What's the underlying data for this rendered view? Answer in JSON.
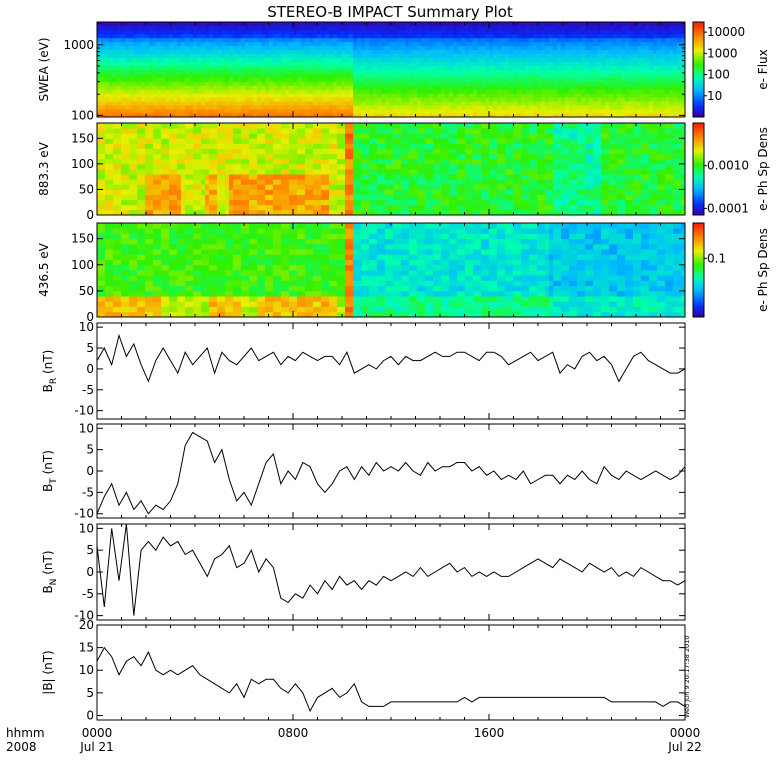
{
  "chart_data": {
    "type": "line",
    "title": "STEREO-B IMPACT Summary Plot",
    "x_axis": {
      "ticks": [
        "0000",
        "0800",
        "1600",
        "0000"
      ],
      "dates": [
        "Jul 21",
        "Jul 22"
      ],
      "corner_label_1": "hhmm",
      "corner_label_2": "2008",
      "range_hours": [
        0,
        24
      ]
    },
    "timestamp": "Wed Jun 9 20:17:38 2010",
    "spectrograms": [
      {
        "id": "swea",
        "ylabel": "SWEA (eV)",
        "yscale": "log",
        "yticks": [
          "1000",
          "100"
        ],
        "ytick_values": [
          1000,
          100
        ],
        "ylim": [
          95,
          2100
        ],
        "colorbar_label": "e- Flux",
        "colorbar_scale": "log",
        "colorbar_ticks": [
          "10000",
          "1000",
          "100",
          "10"
        ],
        "colorbar_tick_values": [
          10000,
          1000,
          100,
          10
        ],
        "colorbar_range": [
          1,
          30000
        ],
        "profile_before_hours": 10.5,
        "low_energy_flux_before": 12000,
        "low_energy_flux_after": 4000
      },
      {
        "id": "pad883",
        "ylabel": "883.3 eV",
        "yticks": [
          "150",
          "100",
          "50",
          "0"
        ],
        "ytick_values": [
          150,
          100,
          50,
          0
        ],
        "ylim": [
          0,
          180
        ],
        "colorbar_label": "e- Ph Sp Dens",
        "colorbar_scale": "log",
        "colorbar_ticks": [
          "0.0010",
          "0.0001"
        ],
        "colorbar_tick_values": [
          0.001,
          0.0001
        ],
        "colorbar_range": [
          7e-05,
          0.01
        ]
      },
      {
        "id": "pad436",
        "ylabel": "436.5 eV",
        "yticks": [
          "150",
          "100",
          "50",
          "0"
        ],
        "ytick_values": [
          150,
          100,
          50,
          0
        ],
        "ylim": [
          0,
          180
        ],
        "colorbar_label": "e- Ph Sp Dens",
        "colorbar_scale": "log",
        "colorbar_ticks": [
          "0.1"
        ],
        "colorbar_tick_values": [
          0.1
        ],
        "colorbar_range": [
          0.01,
          0.4
        ]
      }
    ],
    "line_panels": [
      {
        "id": "br",
        "ylabel_main": "B",
        "ylabel_sub": "R",
        "ylabel_unit": "(nT)",
        "ylim": [
          -12,
          11
        ],
        "yticks": [
          "10",
          "5",
          "0",
          "-5",
          "-10"
        ],
        "ytick_values": [
          10,
          5,
          0,
          -5,
          -10
        ],
        "x_hours": [
          0,
          0.3,
          0.6,
          0.9,
          1.2,
          1.5,
          1.8,
          2.1,
          2.4,
          2.7,
          3.0,
          3.3,
          3.6,
          3.9,
          4.2,
          4.5,
          4.8,
          5.1,
          5.4,
          5.7,
          6.0,
          6.3,
          6.6,
          6.9,
          7.2,
          7.5,
          7.8,
          8.1,
          8.4,
          8.7,
          9.0,
          9.3,
          9.6,
          9.9,
          10.2,
          10.5,
          10.8,
          11.1,
          11.4,
          11.7,
          12.0,
          12.3,
          12.6,
          12.9,
          13.2,
          13.5,
          13.8,
          14.1,
          14.4,
          14.7,
          15.0,
          15.3,
          15.6,
          15.9,
          16.2,
          16.5,
          16.8,
          17.1,
          17.4,
          17.7,
          18.0,
          18.3,
          18.6,
          18.9,
          19.2,
          19.5,
          19.8,
          20.1,
          20.4,
          20.7,
          21.0,
          21.3,
          21.6,
          21.9,
          22.2,
          22.5,
          22.8,
          23.1,
          23.4,
          23.7,
          24.0
        ],
        "values": [
          2,
          5,
          1,
          8,
          3,
          6,
          1,
          -3,
          2,
          5,
          2,
          -1,
          4,
          1,
          3,
          5,
          -1,
          4,
          2,
          1,
          3,
          5,
          2,
          3,
          4,
          1,
          3,
          2,
          4,
          3,
          2,
          3,
          3,
          1,
          4,
          -1,
          0,
          1,
          0,
          2,
          3,
          1,
          3,
          2,
          2,
          3,
          4,
          3,
          3,
          4,
          4,
          3,
          2,
          4,
          4,
          3,
          1,
          2,
          3,
          4,
          2,
          3,
          4,
          -1,
          1,
          0,
          3,
          4,
          2,
          3,
          1,
          -3,
          0,
          3,
          4,
          2,
          1,
          0,
          -1,
          -1,
          0
        ]
      },
      {
        "id": "bt",
        "ylabel_main": "B",
        "ylabel_sub": "T",
        "ylabel_unit": "(nT)",
        "ylim": [
          -11,
          11
        ],
        "yticks": [
          "10",
          "5",
          "0",
          "-5",
          "-10"
        ],
        "ytick_values": [
          10,
          5,
          0,
          -5,
          -10
        ],
        "x_hours": [
          0,
          0.3,
          0.6,
          0.9,
          1.2,
          1.5,
          1.8,
          2.1,
          2.4,
          2.7,
          3.0,
          3.3,
          3.6,
          3.9,
          4.2,
          4.5,
          4.8,
          5.1,
          5.4,
          5.7,
          6.0,
          6.3,
          6.6,
          6.9,
          7.2,
          7.5,
          7.8,
          8.1,
          8.4,
          8.7,
          9.0,
          9.3,
          9.6,
          9.9,
          10.2,
          10.5,
          10.8,
          11.1,
          11.4,
          11.7,
          12.0,
          12.3,
          12.6,
          12.9,
          13.2,
          13.5,
          13.8,
          14.1,
          14.4,
          14.7,
          15.0,
          15.3,
          15.6,
          15.9,
          16.2,
          16.5,
          16.8,
          17.1,
          17.4,
          17.7,
          18.0,
          18.3,
          18.6,
          18.9,
          19.2,
          19.5,
          19.8,
          20.1,
          20.4,
          20.7,
          21.0,
          21.3,
          21.6,
          21.9,
          22.2,
          22.5,
          22.8,
          23.1,
          23.4,
          23.7,
          24.0
        ],
        "values": [
          -10,
          -6,
          -3,
          -8,
          -5,
          -9,
          -7,
          -10,
          -8,
          -9,
          -7,
          -3,
          6,
          9,
          8,
          7,
          2,
          5,
          -2,
          -7,
          -5,
          -8,
          -3,
          2,
          4,
          -3,
          0,
          -2,
          2,
          1,
          -3,
          -5,
          -3,
          0,
          1,
          -2,
          1,
          -1,
          2,
          0,
          1,
          0,
          2,
          0,
          -1,
          2,
          0,
          1,
          1,
          2,
          2,
          0,
          1,
          -1,
          0,
          -2,
          -1,
          -2,
          0,
          -3,
          -2,
          -1,
          -1,
          -3,
          -1,
          -2,
          0,
          -2,
          -3,
          1,
          -1,
          -2,
          0,
          -1,
          -2,
          -1,
          0,
          -1,
          -2,
          -1,
          1
        ]
      },
      {
        "id": "bn",
        "ylabel_main": "B",
        "ylabel_sub": "N",
        "ylabel_unit": "(nT)",
        "ylim": [
          -11,
          11
        ],
        "yticks": [
          "10",
          "5",
          "0",
          "-5",
          "-10"
        ],
        "ytick_values": [
          10,
          5,
          0,
          -5,
          -10
        ],
        "x_hours": [
          0,
          0.3,
          0.6,
          0.9,
          1.2,
          1.5,
          1.8,
          2.1,
          2.4,
          2.7,
          3.0,
          3.3,
          3.6,
          3.9,
          4.2,
          4.5,
          4.8,
          5.1,
          5.4,
          5.7,
          6.0,
          6.3,
          6.6,
          6.9,
          7.2,
          7.5,
          7.8,
          8.1,
          8.4,
          8.7,
          9.0,
          9.3,
          9.6,
          9.9,
          10.2,
          10.5,
          10.8,
          11.1,
          11.4,
          11.7,
          12.0,
          12.3,
          12.6,
          12.9,
          13.2,
          13.5,
          13.8,
          14.1,
          14.4,
          14.7,
          15.0,
          15.3,
          15.6,
          15.9,
          16.2,
          16.5,
          16.8,
          17.1,
          17.4,
          17.7,
          18.0,
          18.3,
          18.6,
          18.9,
          19.2,
          19.5,
          19.8,
          20.1,
          20.4,
          20.7,
          21.0,
          21.3,
          21.6,
          21.9,
          22.2,
          22.5,
          22.8,
          23.1,
          23.4,
          23.7,
          24.0
        ],
        "values": [
          6,
          -8,
          10,
          -2,
          11,
          -10,
          5,
          7,
          5,
          8,
          6,
          7,
          4,
          5,
          2,
          -1,
          3,
          4,
          6,
          1,
          2,
          5,
          0,
          3,
          1,
          -6,
          -7,
          -5,
          -6,
          -3,
          -5,
          -2,
          -4,
          -1,
          -3,
          -2,
          -4,
          -2,
          -3,
          -1,
          -2,
          -1,
          0,
          -1,
          1,
          -1,
          0,
          1,
          2,
          0,
          1,
          -1,
          0,
          -1,
          0,
          -1,
          -1,
          0,
          1,
          2,
          3,
          2,
          1,
          3,
          2,
          1,
          0,
          2,
          1,
          0,
          1,
          -1,
          0,
          -1,
          1,
          0,
          -1,
          -2,
          -2,
          -3,
          -2
        ]
      },
      {
        "id": "bmag",
        "ylabel_main": "|B|",
        "ylabel_sub": "",
        "ylabel_unit": "(nT)",
        "ylim": [
          -1,
          20
        ],
        "yticks": [
          "20",
          "15",
          "10",
          "5",
          "0"
        ],
        "ytick_values": [
          20,
          15,
          10,
          5,
          0
        ],
        "x_hours": [
          0,
          0.3,
          0.6,
          0.9,
          1.2,
          1.5,
          1.8,
          2.1,
          2.4,
          2.7,
          3.0,
          3.3,
          3.6,
          3.9,
          4.2,
          4.5,
          4.8,
          5.1,
          5.4,
          5.7,
          6.0,
          6.3,
          6.6,
          6.9,
          7.2,
          7.5,
          7.8,
          8.1,
          8.4,
          8.7,
          9.0,
          9.3,
          9.6,
          9.9,
          10.2,
          10.5,
          10.8,
          11.1,
          11.4,
          11.7,
          12.0,
          12.3,
          12.6,
          12.9,
          13.2,
          13.5,
          13.8,
          14.1,
          14.4,
          14.7,
          15.0,
          15.3,
          15.6,
          15.9,
          16.2,
          16.5,
          16.8,
          17.1,
          17.4,
          17.7,
          18.0,
          18.3,
          18.6,
          18.9,
          19.2,
          19.5,
          19.8,
          20.1,
          20.4,
          20.7,
          21.0,
          21.3,
          21.6,
          21.9,
          22.2,
          22.5,
          22.8,
          23.1,
          23.4,
          23.7,
          24.0
        ],
        "values": [
          12,
          15,
          13,
          9,
          12,
          13,
          11,
          14,
          10,
          9,
          10,
          9,
          10,
          11,
          9,
          8,
          7,
          6,
          5,
          7,
          4,
          8,
          7,
          8,
          8,
          6,
          5,
          7,
          5,
          1,
          4,
          5,
          6,
          4,
          5,
          7,
          3,
          2,
          2,
          2,
          3,
          3,
          3,
          3,
          3,
          3,
          3,
          3,
          3,
          3,
          4,
          3,
          4,
          4,
          4,
          4,
          4,
          4,
          4,
          4,
          4,
          4,
          4,
          4,
          4,
          4,
          4,
          4,
          4,
          4,
          3,
          3,
          3,
          3,
          3,
          3,
          3,
          2,
          3,
          3,
          2
        ]
      }
    ]
  }
}
